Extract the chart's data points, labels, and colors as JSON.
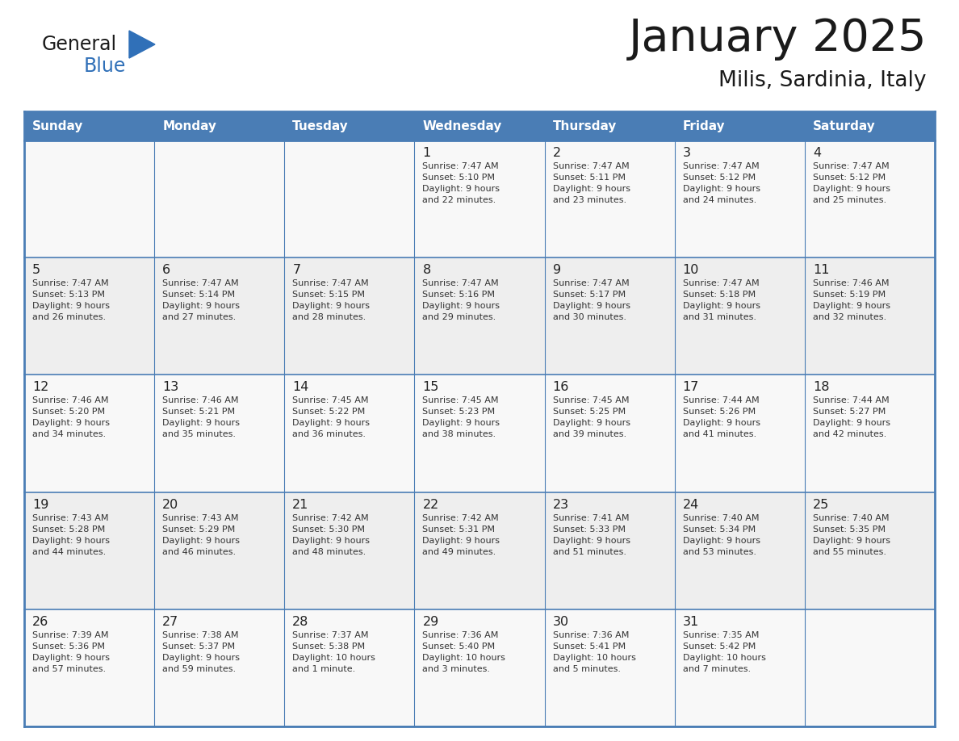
{
  "title": "January 2025",
  "subtitle": "Milis, Sardinia, Italy",
  "header_bg": "#4A7DB5",
  "header_text_color": "#FFFFFF",
  "border_color": "#4A7DB5",
  "title_color": "#1a1a1a",
  "subtitle_color": "#1a1a1a",
  "cell_bg_even": "#F8F8F8",
  "cell_bg_odd": "#EEEEEE",
  "logo_black": "#1a1a1a",
  "logo_blue": "#3070B8",
  "day_headers": [
    "Sunday",
    "Monday",
    "Tuesday",
    "Wednesday",
    "Thursday",
    "Friday",
    "Saturday"
  ],
  "weeks": [
    {
      "days": [
        {
          "day": null,
          "info": null
        },
        {
          "day": null,
          "info": null
        },
        {
          "day": null,
          "info": null
        },
        {
          "day": "1",
          "info": "Sunrise: 7:47 AM\nSunset: 5:10 PM\nDaylight: 9 hours\nand 22 minutes."
        },
        {
          "day": "2",
          "info": "Sunrise: 7:47 AM\nSunset: 5:11 PM\nDaylight: 9 hours\nand 23 minutes."
        },
        {
          "day": "3",
          "info": "Sunrise: 7:47 AM\nSunset: 5:12 PM\nDaylight: 9 hours\nand 24 minutes."
        },
        {
          "day": "4",
          "info": "Sunrise: 7:47 AM\nSunset: 5:12 PM\nDaylight: 9 hours\nand 25 minutes."
        }
      ]
    },
    {
      "days": [
        {
          "day": "5",
          "info": "Sunrise: 7:47 AM\nSunset: 5:13 PM\nDaylight: 9 hours\nand 26 minutes."
        },
        {
          "day": "6",
          "info": "Sunrise: 7:47 AM\nSunset: 5:14 PM\nDaylight: 9 hours\nand 27 minutes."
        },
        {
          "day": "7",
          "info": "Sunrise: 7:47 AM\nSunset: 5:15 PM\nDaylight: 9 hours\nand 28 minutes."
        },
        {
          "day": "8",
          "info": "Sunrise: 7:47 AM\nSunset: 5:16 PM\nDaylight: 9 hours\nand 29 minutes."
        },
        {
          "day": "9",
          "info": "Sunrise: 7:47 AM\nSunset: 5:17 PM\nDaylight: 9 hours\nand 30 minutes."
        },
        {
          "day": "10",
          "info": "Sunrise: 7:47 AM\nSunset: 5:18 PM\nDaylight: 9 hours\nand 31 minutes."
        },
        {
          "day": "11",
          "info": "Sunrise: 7:46 AM\nSunset: 5:19 PM\nDaylight: 9 hours\nand 32 minutes."
        }
      ]
    },
    {
      "days": [
        {
          "day": "12",
          "info": "Sunrise: 7:46 AM\nSunset: 5:20 PM\nDaylight: 9 hours\nand 34 minutes."
        },
        {
          "day": "13",
          "info": "Sunrise: 7:46 AM\nSunset: 5:21 PM\nDaylight: 9 hours\nand 35 minutes."
        },
        {
          "day": "14",
          "info": "Sunrise: 7:45 AM\nSunset: 5:22 PM\nDaylight: 9 hours\nand 36 minutes."
        },
        {
          "day": "15",
          "info": "Sunrise: 7:45 AM\nSunset: 5:23 PM\nDaylight: 9 hours\nand 38 minutes."
        },
        {
          "day": "16",
          "info": "Sunrise: 7:45 AM\nSunset: 5:25 PM\nDaylight: 9 hours\nand 39 minutes."
        },
        {
          "day": "17",
          "info": "Sunrise: 7:44 AM\nSunset: 5:26 PM\nDaylight: 9 hours\nand 41 minutes."
        },
        {
          "day": "18",
          "info": "Sunrise: 7:44 AM\nSunset: 5:27 PM\nDaylight: 9 hours\nand 42 minutes."
        }
      ]
    },
    {
      "days": [
        {
          "day": "19",
          "info": "Sunrise: 7:43 AM\nSunset: 5:28 PM\nDaylight: 9 hours\nand 44 minutes."
        },
        {
          "day": "20",
          "info": "Sunrise: 7:43 AM\nSunset: 5:29 PM\nDaylight: 9 hours\nand 46 minutes."
        },
        {
          "day": "21",
          "info": "Sunrise: 7:42 AM\nSunset: 5:30 PM\nDaylight: 9 hours\nand 48 minutes."
        },
        {
          "day": "22",
          "info": "Sunrise: 7:42 AM\nSunset: 5:31 PM\nDaylight: 9 hours\nand 49 minutes."
        },
        {
          "day": "23",
          "info": "Sunrise: 7:41 AM\nSunset: 5:33 PM\nDaylight: 9 hours\nand 51 minutes."
        },
        {
          "day": "24",
          "info": "Sunrise: 7:40 AM\nSunset: 5:34 PM\nDaylight: 9 hours\nand 53 minutes."
        },
        {
          "day": "25",
          "info": "Sunrise: 7:40 AM\nSunset: 5:35 PM\nDaylight: 9 hours\nand 55 minutes."
        }
      ]
    },
    {
      "days": [
        {
          "day": "26",
          "info": "Sunrise: 7:39 AM\nSunset: 5:36 PM\nDaylight: 9 hours\nand 57 minutes."
        },
        {
          "day": "27",
          "info": "Sunrise: 7:38 AM\nSunset: 5:37 PM\nDaylight: 9 hours\nand 59 minutes."
        },
        {
          "day": "28",
          "info": "Sunrise: 7:37 AM\nSunset: 5:38 PM\nDaylight: 10 hours\nand 1 minute."
        },
        {
          "day": "29",
          "info": "Sunrise: 7:36 AM\nSunset: 5:40 PM\nDaylight: 10 hours\nand 3 minutes."
        },
        {
          "day": "30",
          "info": "Sunrise: 7:36 AM\nSunset: 5:41 PM\nDaylight: 10 hours\nand 5 minutes."
        },
        {
          "day": "31",
          "info": "Sunrise: 7:35 AM\nSunset: 5:42 PM\nDaylight: 10 hours\nand 7 minutes."
        },
        {
          "day": null,
          "info": null
        }
      ]
    }
  ]
}
